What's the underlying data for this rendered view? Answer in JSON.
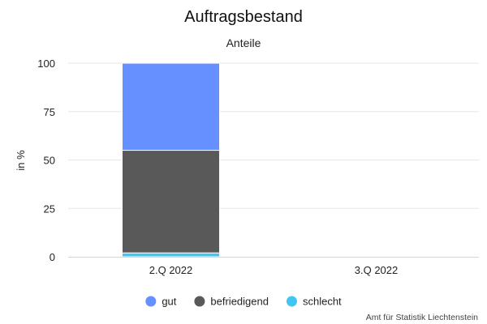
{
  "chart_data": {
    "type": "bar",
    "stacked": true,
    "title": "Auftragsbestand",
    "subtitle": "Anteile",
    "xlabel": "",
    "ylabel": "in %",
    "ylim": [
      0,
      100
    ],
    "yticks": [
      0,
      25,
      50,
      75,
      100
    ],
    "grid": true,
    "legend_position": "bottom-center",
    "categories": [
      "2.Q 2022",
      "3.Q 2022"
    ],
    "series": [
      {
        "name": "gut",
        "color": "#6690ff",
        "values": [
          45,
          null
        ]
      },
      {
        "name": "befriedigend",
        "color": "#595959",
        "values": [
          53,
          null
        ]
      },
      {
        "name": "schlecht",
        "color": "#41c6ef",
        "values": [
          2,
          null
        ]
      }
    ],
    "credits": "Amt für Statistik Liechtenstein"
  }
}
